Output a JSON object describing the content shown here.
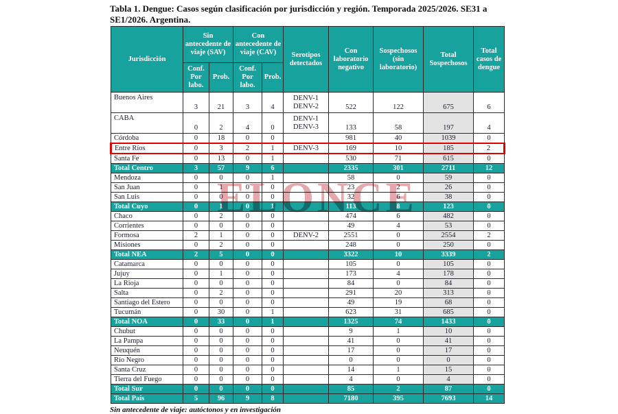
{
  "page": {
    "title": "Tabla 1. Dengue: Casos según clasificación por jurisdicción y región. Temporada 2025/2026. SE31 a SE1/2026. Argentina.",
    "watermark": "ELONCE",
    "footnote": "Sin antecedente de viaje: autóctonos y en investigación"
  },
  "colors": {
    "header_teal": "#17a29e",
    "shaded_gray": "#e3e3e3",
    "highlight_red": "#e10000",
    "watermark_red": "rgba(201,59,67,0.45)"
  },
  "table": {
    "header": {
      "jurisdiccion": "Jurisdicción",
      "sav": "Sin antecedente de viaje (SAV)",
      "cav": "Con antecedente de viaje (CAV)",
      "conf_sav": "Conf. Por labo.",
      "prob_sav": "Prob.",
      "conf_cav": "Conf. Por labo.",
      "prob_cav": "Prob.",
      "serotipos": "Serotipos detectados",
      "lab_negativo": "Con laboratorio negativo",
      "sospechosos": "Sospechosos (sin laboratorio)",
      "total_sospechosos": "Total Sospechosos",
      "total_casos": "Total casos de dengue"
    },
    "rows": [
      {
        "name": "Buenos Aires",
        "type": "tall",
        "sav_conf": "3",
        "sav_prob": "21",
        "cav_conf": "3",
        "cav_prob": "4",
        "serotipos": [
          "DENV-1",
          "DENV-2"
        ],
        "lab_neg": "522",
        "sosp": "122",
        "total_sosp": "675",
        "total_casos": "6"
      },
      {
        "name": "CABA",
        "type": "tall",
        "sav_conf": "0",
        "sav_prob": "2",
        "cav_conf": "4",
        "cav_prob": "0",
        "serotipos": [
          "DENV-1",
          "DENV-3"
        ],
        "lab_neg": "133",
        "sosp": "58",
        "total_sosp": "197",
        "total_casos": "4"
      },
      {
        "name": "Córdoba",
        "type": "normal",
        "sav_conf": "0",
        "sav_prob": "18",
        "cav_conf": "0",
        "cav_prob": "0",
        "serotipos": [],
        "lab_neg": "981",
        "sosp": "40",
        "total_sosp": "1039",
        "total_casos": "0"
      },
      {
        "name": "Entre Ríos",
        "type": "highlight",
        "sav_conf": "0",
        "sav_prob": "3",
        "cav_conf": "2",
        "cav_prob": "1",
        "serotipos": [
          "DENV-3"
        ],
        "lab_neg": "169",
        "sosp": "10",
        "total_sosp": "185",
        "total_casos": "2"
      },
      {
        "name": "Santa Fe",
        "type": "normal",
        "sav_conf": "0",
        "sav_prob": "13",
        "cav_conf": "0",
        "cav_prob": "1",
        "serotipos": [],
        "lab_neg": "530",
        "sosp": "71",
        "total_sosp": "615",
        "total_casos": "0"
      },
      {
        "name": "Total Centro",
        "type": "total",
        "sav_conf": "3",
        "sav_prob": "57",
        "cav_conf": "9",
        "cav_prob": "6",
        "serotipos": [],
        "lab_neg": "2335",
        "sosp": "301",
        "total_sosp": "2711",
        "total_casos": "12"
      },
      {
        "name": "Mendoza",
        "type": "normal",
        "sav_conf": "0",
        "sav_prob": "0",
        "cav_conf": "0",
        "cav_prob": "1",
        "serotipos": [],
        "lab_neg": "58",
        "sosp": "0",
        "total_sosp": "59",
        "total_casos": "0"
      },
      {
        "name": "San Juan",
        "type": "normal",
        "sav_conf": "0",
        "sav_prob": "1",
        "cav_conf": "0",
        "cav_prob": "0",
        "serotipos": [],
        "lab_neg": "23",
        "sosp": "2",
        "total_sosp": "26",
        "total_casos": "0"
      },
      {
        "name": "San Luis",
        "type": "normal",
        "sav_conf": "0",
        "sav_prob": "0",
        "cav_conf": "0",
        "cav_prob": "0",
        "serotipos": [],
        "lab_neg": "32",
        "sosp": "6",
        "total_sosp": "38",
        "total_casos": "0"
      },
      {
        "name": "Total Cuyo",
        "type": "total",
        "sav_conf": "0",
        "sav_prob": "1",
        "cav_conf": "0",
        "cav_prob": "1",
        "serotipos": [],
        "lab_neg": "113",
        "sosp": "8",
        "total_sosp": "123",
        "total_casos": "0"
      },
      {
        "name": "Chaco",
        "type": "normal",
        "sav_conf": "0",
        "sav_prob": "2",
        "cav_conf": "0",
        "cav_prob": "0",
        "serotipos": [],
        "lab_neg": "474",
        "sosp": "6",
        "total_sosp": "482",
        "total_casos": "0"
      },
      {
        "name": "Corrientes",
        "type": "normal",
        "sav_conf": "0",
        "sav_prob": "0",
        "cav_conf": "0",
        "cav_prob": "0",
        "serotipos": [],
        "lab_neg": "49",
        "sosp": "4",
        "total_sosp": "53",
        "total_casos": "0"
      },
      {
        "name": "Formosa",
        "type": "normal",
        "sav_conf": "2",
        "sav_prob": "1",
        "cav_conf": "0",
        "cav_prob": "0",
        "serotipos": [
          "DENV-2"
        ],
        "lab_neg": "2551",
        "sosp": "0",
        "total_sosp": "2554",
        "total_casos": "2"
      },
      {
        "name": "Misiones",
        "type": "normal",
        "sav_conf": "0",
        "sav_prob": "2",
        "cav_conf": "0",
        "cav_prob": "0",
        "serotipos": [],
        "lab_neg": "248",
        "sosp": "0",
        "total_sosp": "250",
        "total_casos": "0"
      },
      {
        "name": "Total NEA",
        "type": "total",
        "sav_conf": "2",
        "sav_prob": "5",
        "cav_conf": "0",
        "cav_prob": "0",
        "serotipos": [],
        "lab_neg": "3322",
        "sosp": "10",
        "total_sosp": "3339",
        "total_casos": "2"
      },
      {
        "name": "Catamarca",
        "type": "normal",
        "sav_conf": "0",
        "sav_prob": "0",
        "cav_conf": "0",
        "cav_prob": "0",
        "serotipos": [],
        "lab_neg": "105",
        "sosp": "0",
        "total_sosp": "105",
        "total_casos": "0"
      },
      {
        "name": "Jujuy",
        "type": "normal",
        "sav_conf": "0",
        "sav_prob": "1",
        "cav_conf": "0",
        "cav_prob": "0",
        "serotipos": [],
        "lab_neg": "173",
        "sosp": "4",
        "total_sosp": "178",
        "total_casos": "0"
      },
      {
        "name": "La Rioja",
        "type": "normal",
        "sav_conf": "0",
        "sav_prob": "0",
        "cav_conf": "0",
        "cav_prob": "0",
        "serotipos": [],
        "lab_neg": "84",
        "sosp": "0",
        "total_sosp": "84",
        "total_casos": "0"
      },
      {
        "name": "Salta",
        "type": "normal",
        "sav_conf": "0",
        "sav_prob": "2",
        "cav_conf": "0",
        "cav_prob": "0",
        "serotipos": [],
        "lab_neg": "291",
        "sosp": "20",
        "total_sosp": "313",
        "total_casos": "0"
      },
      {
        "name": "Santiago del Estero",
        "type": "normal",
        "sav_conf": "0",
        "sav_prob": "0",
        "cav_conf": "0",
        "cav_prob": "0",
        "serotipos": [],
        "lab_neg": "49",
        "sosp": "19",
        "total_sosp": "68",
        "total_casos": "0"
      },
      {
        "name": "Tucumán",
        "type": "normal",
        "sav_conf": "0",
        "sav_prob": "30",
        "cav_conf": "0",
        "cav_prob": "1",
        "serotipos": [],
        "lab_neg": "623",
        "sosp": "31",
        "total_sosp": "685",
        "total_casos": "0"
      },
      {
        "name": "Total NOA",
        "type": "total",
        "sav_conf": "0",
        "sav_prob": "33",
        "cav_conf": "0",
        "cav_prob": "1",
        "serotipos": [],
        "lab_neg": "1325",
        "sosp": "74",
        "total_sosp": "1433",
        "total_casos": "0"
      },
      {
        "name": "Chubut",
        "type": "normal",
        "sav_conf": "0",
        "sav_prob": "0",
        "cav_conf": "0",
        "cav_prob": "0",
        "serotipos": [],
        "lab_neg": "9",
        "sosp": "1",
        "total_sosp": "10",
        "total_casos": "0"
      },
      {
        "name": "La Pampa",
        "type": "normal",
        "sav_conf": "0",
        "sav_prob": "0",
        "cav_conf": "0",
        "cav_prob": "0",
        "serotipos": [],
        "lab_neg": "41",
        "sosp": "0",
        "total_sosp": "41",
        "total_casos": "0"
      },
      {
        "name": "Neuquén",
        "type": "normal",
        "sav_conf": "0",
        "sav_prob": "0",
        "cav_conf": "0",
        "cav_prob": "0",
        "serotipos": [],
        "lab_neg": "17",
        "sosp": "0",
        "total_sosp": "17",
        "total_casos": "0"
      },
      {
        "name": "Río Negro",
        "type": "normal",
        "sav_conf": "0",
        "sav_prob": "0",
        "cav_conf": "0",
        "cav_prob": "0",
        "serotipos": [],
        "lab_neg": "0",
        "sosp": "0",
        "total_sosp": "0",
        "total_casos": "0"
      },
      {
        "name": "Santa Cruz",
        "type": "normal",
        "sav_conf": "0",
        "sav_prob": "0",
        "cav_conf": "0",
        "cav_prob": "0",
        "serotipos": [],
        "lab_neg": "14",
        "sosp": "1",
        "total_sosp": "15",
        "total_casos": "0"
      },
      {
        "name": "Tierra del Fuego",
        "type": "normal",
        "sav_conf": "0",
        "sav_prob": "0",
        "cav_conf": "0",
        "cav_prob": "0",
        "serotipos": [],
        "lab_neg": "4",
        "sosp": "0",
        "total_sosp": "4",
        "total_casos": "0"
      },
      {
        "name": "Total Sur",
        "type": "total",
        "sav_conf": "0",
        "sav_prob": "0",
        "cav_conf": "0",
        "cav_prob": "0",
        "serotipos": [],
        "lab_neg": "85",
        "sosp": "2",
        "total_sosp": "87",
        "total_casos": "0"
      },
      {
        "name": "Total País",
        "type": "total",
        "sav_conf": "5",
        "sav_prob": "96",
        "cav_conf": "9",
        "cav_prob": "8",
        "serotipos": [],
        "lab_neg": "7180",
        "sosp": "395",
        "total_sosp": "7693",
        "total_casos": "14"
      }
    ]
  }
}
